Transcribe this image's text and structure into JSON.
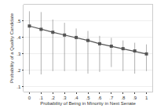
{
  "chart_data": {
    "type": "line",
    "x": [
      0.0,
      0.1,
      0.2,
      0.3,
      0.4,
      0.5,
      0.6,
      0.7,
      0.8,
      0.9,
      1.0
    ],
    "values": [
      0.47,
      0.45,
      0.432,
      0.415,
      0.4,
      0.382,
      0.362,
      0.347,
      0.332,
      0.318,
      0.3
    ],
    "upper": [
      0.56,
      0.555,
      0.51,
      0.49,
      0.455,
      0.44,
      0.41,
      0.398,
      0.382,
      0.368,
      0.358
    ],
    "lower": [
      0.175,
      0.175,
      0.195,
      0.195,
      0.195,
      0.18,
      0.19,
      0.22,
      0.195,
      0.18,
      0.195
    ],
    "xlabel": "Probability of Being in Minority in Next Senate",
    "ylabel": "Probability of a Quality Candidate",
    "xlim": [
      -0.05,
      1.05
    ],
    "xticks": [
      0,
      {
        "value": 0.1,
        "label": ".1"
      },
      {
        "value": 0.2,
        "label": ".2"
      },
      {
        "value": 0.3,
        "label": ".3"
      },
      {
        "value": 0.4,
        "label": ".4"
      },
      {
        "value": 0.5,
        "label": ".5"
      },
      {
        "value": 0.6,
        "label": ".6"
      },
      {
        "value": 0.7,
        "label": ".7"
      },
      {
        "value": 0.8,
        "label": ".8"
      },
      {
        "value": 0.9,
        "label": ".9"
      },
      1
    ],
    "ylim": [
      0.07,
      0.6
    ],
    "yticks": [
      {
        "value": 0.1,
        "label": ".1"
      },
      {
        "value": 0.2,
        "label": ".2"
      },
      {
        "value": 0.3,
        "label": ".3"
      },
      {
        "value": 0.4,
        "label": ".4"
      },
      {
        "value": 0.5,
        "label": ".5"
      }
    ],
    "color": "#555555",
    "marker": "square",
    "grid": true
  }
}
